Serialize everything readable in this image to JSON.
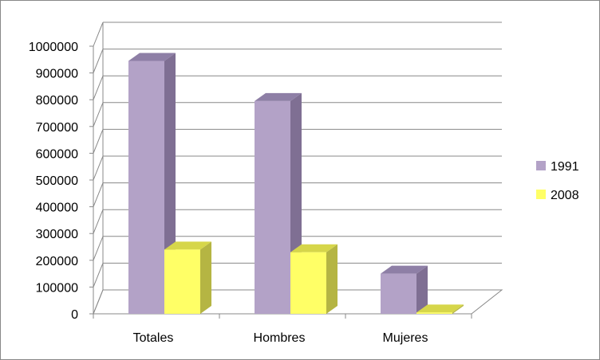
{
  "chart_data": {
    "type": "bar",
    "categories": [
      "Totales",
      "Hombres",
      "Mujeres"
    ],
    "series": [
      {
        "name": "1991",
        "values": [
          945000,
          795000,
          150000
        ],
        "color": "#B3A2C7",
        "side_color": "#7F6F93",
        "top_color": "#8E7FA6"
      },
      {
        "name": "2008",
        "values": [
          240000,
          230000,
          5000
        ],
        "color": "#FFFF66",
        "side_color": "#B5B543",
        "top_color": "#D6D64A"
      }
    ],
    "ylim": [
      0,
      1000000
    ],
    "yticks": [
      "0",
      "100000",
      "200000",
      "300000",
      "400000",
      "500000",
      "600000",
      "700000",
      "800000",
      "900000",
      "1000000"
    ],
    "grid": true,
    "legend_position": "right",
    "three_d": true
  }
}
